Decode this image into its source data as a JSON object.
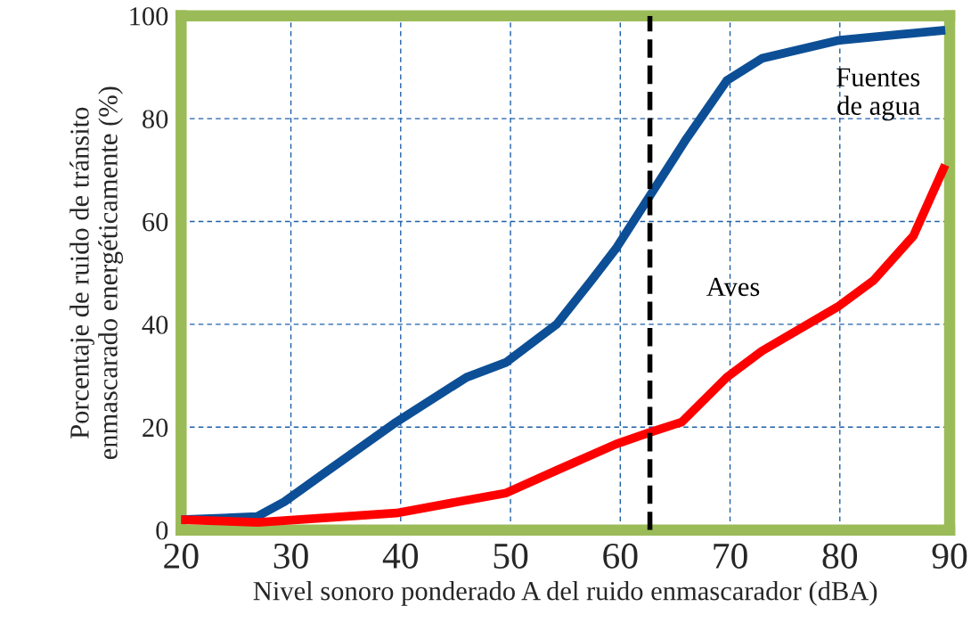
{
  "chart_data": {
    "type": "line",
    "xlabel": "Nivel sonoro ponderado A del ruido enmascarador (dBA)",
    "ylabel": "Porcentaje de ruido de tránsito\nenmascarado energéticamente (%)",
    "xlim": [
      20,
      90
    ],
    "ylim": [
      0,
      100
    ],
    "xticks": [
      20,
      30,
      40,
      50,
      60,
      70,
      80,
      90
    ],
    "yticks": [
      0,
      20,
      40,
      60,
      80,
      100
    ],
    "grid": true,
    "series": [
      {
        "name": "Fuentes\nde agua",
        "color": "#0d4f96",
        "x": [
          20,
          26.9,
          29.4,
          33,
          39.6,
          46,
          49.6,
          54.2,
          57.4,
          59.6,
          62.7,
          66,
          69.7,
          72.9,
          79.8,
          89.6
        ],
        "values": [
          2,
          2.6,
          5.5,
          11,
          21,
          29.7,
          32.6,
          40,
          48.6,
          54.7,
          65,
          76,
          87.4,
          91.7,
          95.2,
          97.2
        ]
      },
      {
        "name": "Aves",
        "color": "#ff0000",
        "x": [
          20,
          27,
          39.6,
          45.2,
          49.6,
          54.2,
          59.6,
          62.7,
          65.6,
          69.7,
          72.9,
          79.8,
          83.1,
          86.7,
          89.6
        ],
        "values": [
          2,
          1.5,
          3.3,
          5.5,
          7.2,
          11.6,
          16.7,
          19,
          21,
          29.7,
          34.8,
          43.4,
          48.6,
          57.2,
          71
        ]
      }
    ],
    "ref_lines": [
      {
        "axis": "x",
        "value": 62.7,
        "color": "#000000",
        "line_style": "dashed"
      }
    ]
  }
}
